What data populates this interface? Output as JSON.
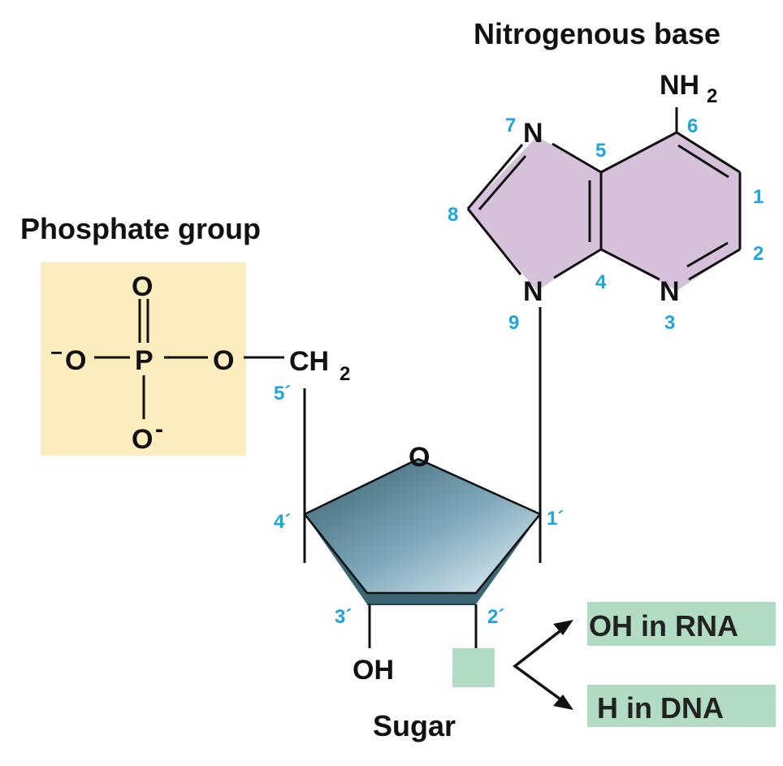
{
  "labels": {
    "nitrogenous_base": "Nitrogenous base",
    "phosphate_group": "Phosphate group",
    "sugar": "Sugar",
    "oh_in_rna": "OH in RNA",
    "h_in_dna": "H in DNA"
  },
  "phosphate": {
    "o_top": "O",
    "o_left": "O",
    "o_left_charge": "−",
    "p": "P",
    "o_right": "O",
    "o_bottom": "O",
    "o_bottom_charge": "-",
    "ch2": "CH",
    "ch2_sub": "2"
  },
  "base": {
    "nh2": "NH",
    "nh2_sub": "2",
    "n7": "N",
    "n9": "N",
    "n3": "N"
  },
  "sugar_atoms": {
    "ring_o": "O",
    "oh": "OH"
  },
  "numbers": {
    "n1": "1",
    "n2": "2",
    "n3": "3",
    "n4": "4",
    "n5": "5",
    "n6": "6",
    "n7": "7",
    "n8": "8",
    "n9": "9",
    "c1p": "1´",
    "c2p": "2´",
    "c3p": "3´",
    "c4p": "4´",
    "c5p": "5´"
  },
  "colors": {
    "phosphate_fill": "#fcedbe",
    "base_fill": "#d5c2da",
    "label_box_fill": "#b2dbc3",
    "number_color": "#1ea5de",
    "sugar_dark": "#3c6e7e",
    "sugar_light": "#e6f2fa"
  }
}
